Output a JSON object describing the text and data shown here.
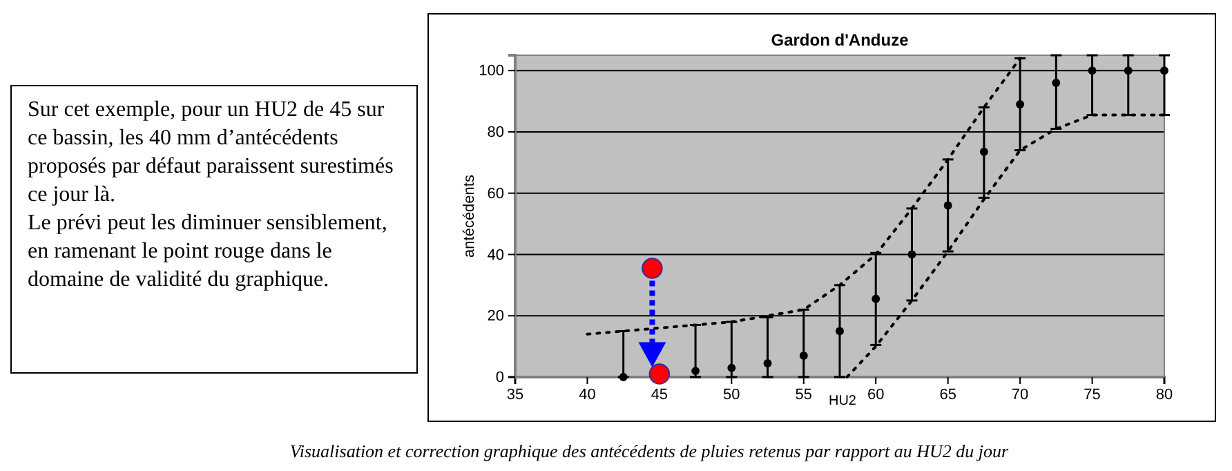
{
  "chart_data": {
    "type": "scatter",
    "title": "Gardon d'Anduze",
    "xlabel": "HU2",
    "ylabel": "antécédents",
    "xlim": [
      35,
      80
    ],
    "xticks": [
      35,
      40,
      45,
      50,
      55,
      60,
      65,
      70,
      75,
      80
    ],
    "ylim": [
      0,
      105
    ],
    "yticks": [
      0,
      20,
      40,
      60,
      80,
      100
    ],
    "grid": "y",
    "annotations": [
      "Sur cet exemple, pour un HU2 de 45 sur ce bassin, les 40 mm d’antécédents proposés par défaut paraissent surestimés ce jour là.\nLe prévi peut les diminuer sensiblement, en ramenant le point rouge dans le domaine de validité du graphique.",
      "Visualisation et correction graphique  des  antécédents de pluies retenus  par rapport au  HU2 du jour"
    ],
    "series": [
      {
        "type": "line",
        "color": "#000000",
        "line_style": "dotted",
        "x": [
          40,
          42.5,
          45,
          50,
          55,
          57.5,
          60,
          62.5,
          65,
          67.5,
          70
        ],
        "values": [
          14,
          15,
          16,
          18,
          22,
          30,
          40,
          55,
          71,
          88,
          104
        ]
      },
      {
        "type": "line",
        "color": "#000000",
        "line_style": "dotted",
        "x": [
          58,
          60,
          62.5,
          65,
          67.5,
          70,
          72.5,
          75,
          80
        ],
        "values": [
          0,
          10,
          25,
          41,
          58,
          74,
          81,
          85.5,
          85.5
        ]
      },
      {
        "color": "#000000",
        "marker": "circle",
        "x": [
          42.5,
          47.5,
          50,
          52.5,
          55,
          57.5,
          60,
          62.5,
          65,
          67.5,
          70,
          72.5,
          75,
          77.5,
          80
        ],
        "values": [
          0,
          2,
          3,
          4.5,
          7,
          15,
          25.5,
          40,
          56,
          73.5,
          89,
          96,
          100,
          100,
          100
        ],
        "errors": [
          [
            0,
            15
          ],
          [
            0,
            17
          ],
          [
            0,
            18
          ],
          [
            0,
            19.5
          ],
          [
            0,
            22
          ],
          [
            0,
            30
          ],
          [
            10.5,
            40.5
          ],
          [
            25,
            55
          ],
          [
            41,
            71
          ],
          [
            58.5,
            88
          ],
          [
            74,
            104
          ],
          [
            81,
            105
          ],
          [
            85.5,
            105
          ],
          [
            85.5,
            105
          ],
          [
            85.5,
            105
          ]
        ]
      },
      {
        "color": "#ff0000",
        "marker": "circle",
        "x": [
          44.5,
          45
        ],
        "values": [
          35.5,
          1
        ]
      }
    ]
  }
}
